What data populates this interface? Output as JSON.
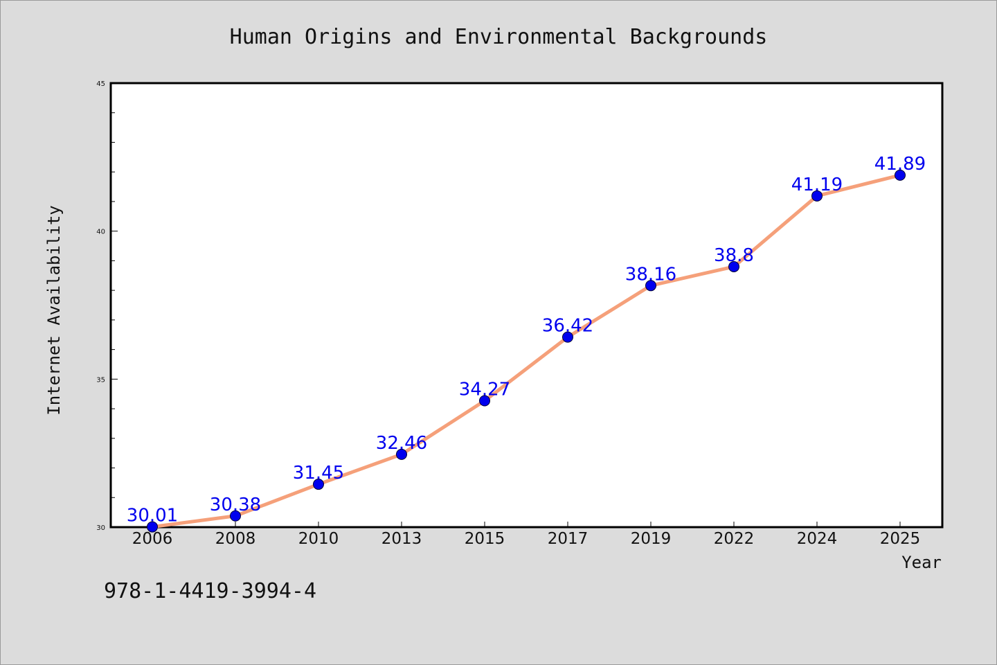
{
  "chart_data": {
    "type": "line",
    "title": "Human Origins and Environmental Backgrounds",
    "xlabel": "Year",
    "ylabel": "Internet Availability",
    "categories": [
      "2006",
      "2008",
      "2010",
      "2013",
      "2015",
      "2017",
      "2019",
      "2022",
      "2024",
      "2025"
    ],
    "series": [
      {
        "values": [
          30.01,
          30.38,
          31.45,
          32.46,
          34.27,
          36.42,
          38.16,
          38.8,
          41.19,
          41.89
        ],
        "labels": [
          "30.01",
          "30.38",
          "31.45",
          "32.46",
          "34.27",
          "36.42",
          "38.16",
          "38.8",
          "41.19",
          "41.89"
        ],
        "line_color": "#f5a07a",
        "marker_color": "#0000ee"
      }
    ],
    "ylim": [
      30,
      45
    ],
    "yticks": [
      "30",
      "35",
      "40",
      "45"
    ],
    "grid": false,
    "legend": "none"
  },
  "footer_text": "978-1-4419-3994-4"
}
